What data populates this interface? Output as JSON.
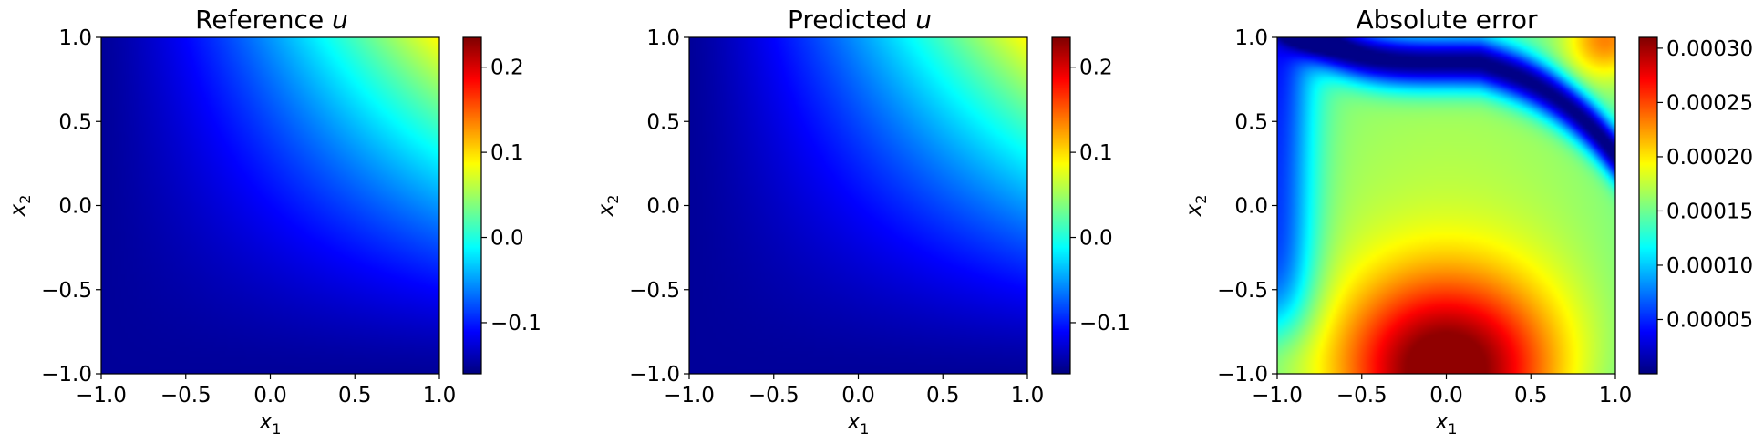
{
  "chart_data": [
    {
      "type": "heatmap",
      "title": "Reference ",
      "title_math": "u",
      "xlabel": "x",
      "xlabel_sub": "1",
      "ylabel": "x",
      "ylabel_sub": "2",
      "xlim": [
        -1.0,
        1.0
      ],
      "ylim": [
        -1.0,
        1.0
      ],
      "x_ticks": [
        -1.0,
        -0.5,
        0.0,
        0.5,
        1.0
      ],
      "y_ticks": [
        -1.0,
        -0.5,
        0.0,
        0.5,
        1.0
      ],
      "x_tick_labels": [
        "−1.0",
        "−0.5",
        "0.0",
        "0.5",
        "1.0"
      ],
      "y_tick_labels": [
        "−1.0",
        "−0.5",
        "0.0",
        "0.5",
        "1.0"
      ],
      "colormap": "jet",
      "field": "0.24*((x+1)*(y+1)/4)^1.3 - 0.15",
      "colorbar": {
        "min": -0.16,
        "max": 0.235,
        "ticks": [
          -0.1,
          0.0,
          0.1,
          0.2
        ],
        "tick_labels": [
          "−0.1",
          "0.0",
          "0.1",
          "0.2"
        ]
      }
    },
    {
      "type": "heatmap",
      "title": "Predicted ",
      "title_math": "u",
      "xlabel": "x",
      "xlabel_sub": "1",
      "ylabel": "x",
      "ylabel_sub": "2",
      "xlim": [
        -1.0,
        1.0
      ],
      "ylim": [
        -1.0,
        1.0
      ],
      "x_ticks": [
        -1.0,
        -0.5,
        0.0,
        0.5,
        1.0
      ],
      "y_ticks": [
        -1.0,
        -0.5,
        0.0,
        0.5,
        1.0
      ],
      "x_tick_labels": [
        "−1.0",
        "−0.5",
        "0.0",
        "0.5",
        "1.0"
      ],
      "y_tick_labels": [
        "−1.0",
        "−0.5",
        "0.0",
        "0.5",
        "1.0"
      ],
      "colormap": "jet",
      "field": "0.24*((x+1)*(y+1)/4)^1.3 - 0.15",
      "colorbar": {
        "min": -0.16,
        "max": 0.235,
        "ticks": [
          -0.1,
          0.0,
          0.1,
          0.2
        ],
        "tick_labels": [
          "−0.1",
          "0.0",
          "0.1",
          "0.2"
        ]
      }
    },
    {
      "type": "heatmap",
      "title": "Absolute error",
      "title_math": "",
      "xlabel": "x",
      "xlabel_sub": "1",
      "ylabel": "x",
      "ylabel_sub": "2",
      "xlim": [
        -1.0,
        1.0
      ],
      "ylim": [
        -1.0,
        1.0
      ],
      "x_ticks": [
        -1.0,
        -0.5,
        0.0,
        0.5,
        1.0
      ],
      "y_ticks": [
        -1.0,
        -0.5,
        0.0,
        0.5,
        1.0
      ],
      "x_tick_labels": [
        "−1.0",
        "−0.5",
        "0.0",
        "0.5",
        "1.0"
      ],
      "y_tick_labels": [
        "−1.0",
        "−0.5",
        "0.0",
        "0.5",
        "1.0"
      ],
      "colormap": "jet",
      "field": "error",
      "colorbar": {
        "min": 0.0,
        "max": 0.00031,
        "ticks": [
          5e-05,
          0.0001,
          0.00015,
          0.0002,
          0.00025,
          0.0003
        ],
        "tick_labels": [
          "0.00005",
          "0.00010",
          "0.00015",
          "0.00020",
          "0.00025",
          "0.00030"
        ]
      }
    }
  ]
}
